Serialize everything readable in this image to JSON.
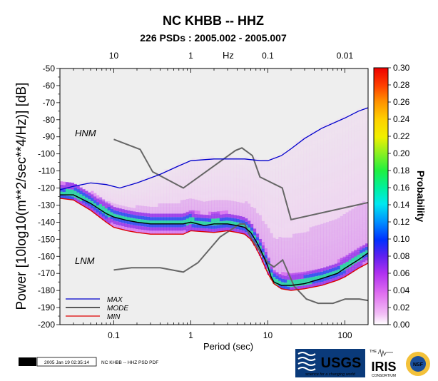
{
  "title": "NC KHBB -- HHZ",
  "subtitle": "226 PSDs : 2005.002 - 2005.007",
  "gmt_stamp": {
    "badge": "GMT",
    "timestamp": "2005 Jan 19 02:35:14",
    "caption": "NC KHBB -- HHZ PSD PDF"
  },
  "logos": {
    "usgs": "USGS",
    "usgs_tagline": "science for a changing world",
    "iris": "IRIS",
    "iris_the": "THE",
    "iris_consortium": "CONSORTIUM",
    "nsf": "NSF"
  },
  "colors": {
    "max": "#0000cc",
    "mode": "#000000",
    "min": "#dd0000",
    "noise_model": "#666666",
    "background": "#eeeeee"
  },
  "chart_data": {
    "type": "heatmap",
    "title": "NC KHBB -- HHZ",
    "subtitle": "226 PSDs : 2005.002 - 2005.007",
    "xlabel": "Period (sec)",
    "ylabel": "Power [10log10(m**2/sec**4/Hz)] [dB]",
    "top_axis_label": "Hz",
    "x_scale": "log",
    "xlim": [
      0.02,
      200
    ],
    "ylim": [
      -200,
      -50
    ],
    "x_ticks": [
      0.1,
      1,
      10,
      100
    ],
    "x_tick_labels": [
      "0.1",
      "1",
      "10",
      "100"
    ],
    "top_ticks": [
      10,
      1,
      0.1,
      0.01
    ],
    "top_tick_labels": [
      "10",
      "1",
      "0.1",
      "0.01"
    ],
    "y_ticks": [
      -50,
      -60,
      -70,
      -80,
      -90,
      -100,
      -110,
      -120,
      -130,
      -140,
      -150,
      -160,
      -170,
      -180,
      -190,
      -200
    ],
    "colorbar": {
      "label": "Probability",
      "range": [
        0,
        0.3
      ],
      "ticks": [
        "0.00",
        "0.02",
        "0.04",
        "0.06",
        "0.08",
        "0.10",
        "0.12",
        "0.14",
        "0.16",
        "0.18",
        "0.20",
        "0.22",
        "0.24",
        "0.26",
        "0.28",
        "0.30"
      ]
    },
    "annotations": [
      {
        "text": "HNM",
        "x": 0.05,
        "y": -87
      },
      {
        "text": "LNM",
        "x": 0.05,
        "y": -166
      }
    ],
    "legend": {
      "position": "bottom-left",
      "entries": [
        "MAX",
        "MODE",
        "MIN"
      ]
    },
    "series": [
      {
        "name": "MAX",
        "x": [
          0.02,
          0.03,
          0.05,
          0.08,
          0.12,
          0.2,
          0.4,
          0.7,
          1,
          2,
          3,
          5,
          8,
          10,
          15,
          20,
          30,
          50,
          100,
          150,
          200
        ],
        "y": [
          -121,
          -119,
          -117,
          -118,
          -120,
          -117,
          -112,
          -107,
          -104,
          -103,
          -103,
          -103,
          -104,
          -104,
          -101,
          -97,
          -91,
          -85,
          -79,
          -75,
          -73
        ]
      },
      {
        "name": "MODE",
        "x": [
          0.02,
          0.03,
          0.05,
          0.08,
          0.1,
          0.15,
          0.2,
          0.3,
          0.5,
          0.8,
          1,
          1.5,
          2,
          3,
          4,
          5,
          6,
          7,
          8,
          9,
          10,
          11,
          12,
          15,
          20,
          30,
          50,
          80,
          100,
          150,
          200
        ],
        "y": [
          -124,
          -124,
          -129,
          -135,
          -137,
          -139,
          -140,
          -141,
          -141,
          -141,
          -140,
          -142,
          -141,
          -141,
          -142,
          -143,
          -146,
          -151,
          -156,
          -161,
          -166,
          -172,
          -175,
          -177,
          -177,
          -176,
          -173,
          -170,
          -167,
          -162,
          -158
        ]
      },
      {
        "name": "MIN",
        "x": [
          0.02,
          0.03,
          0.05,
          0.08,
          0.1,
          0.15,
          0.2,
          0.3,
          0.5,
          0.8,
          1,
          2,
          3,
          4,
          5,
          6,
          7,
          8,
          10,
          12,
          15,
          20,
          30,
          50,
          80,
          100,
          150,
          200
        ],
        "y": [
          -126,
          -127,
          -133,
          -140,
          -143,
          -145,
          -146,
          -147,
          -147,
          -147,
          -145,
          -146,
          -145,
          -146,
          -147,
          -150,
          -155,
          -160,
          -170,
          -176,
          -179,
          -180,
          -179,
          -177,
          -174,
          -172,
          -167,
          -164
        ]
      },
      {
        "name": "HNM",
        "x": [
          0.1,
          0.22,
          0.32,
          0.8,
          3.8,
          4.6,
          6.3,
          7.9,
          15.4,
          20,
          354.8
        ],
        "y": [
          -91.5,
          -97.4,
          -110.5,
          -120,
          -98,
          -96.5,
          -101,
          -113.5,
          -120,
          -138.5,
          -126
        ]
      },
      {
        "name": "LNM",
        "x": [
          0.1,
          0.17,
          0.4,
          0.8,
          1.24,
          2.4,
          4.3,
          5,
          6,
          10,
          12,
          15.6,
          21.9,
          31.6,
          45,
          70,
          101,
          154,
          328
        ],
        "y": [
          -168,
          -166.7,
          -166.7,
          -169.2,
          -163.7,
          -148.6,
          -141.1,
          -141.1,
          -149,
          -163.8,
          -166.2,
          -162.1,
          -177.5,
          -185,
          -187.5,
          -187.5,
          -185,
          -185,
          -187.5
        ]
      }
    ]
  }
}
